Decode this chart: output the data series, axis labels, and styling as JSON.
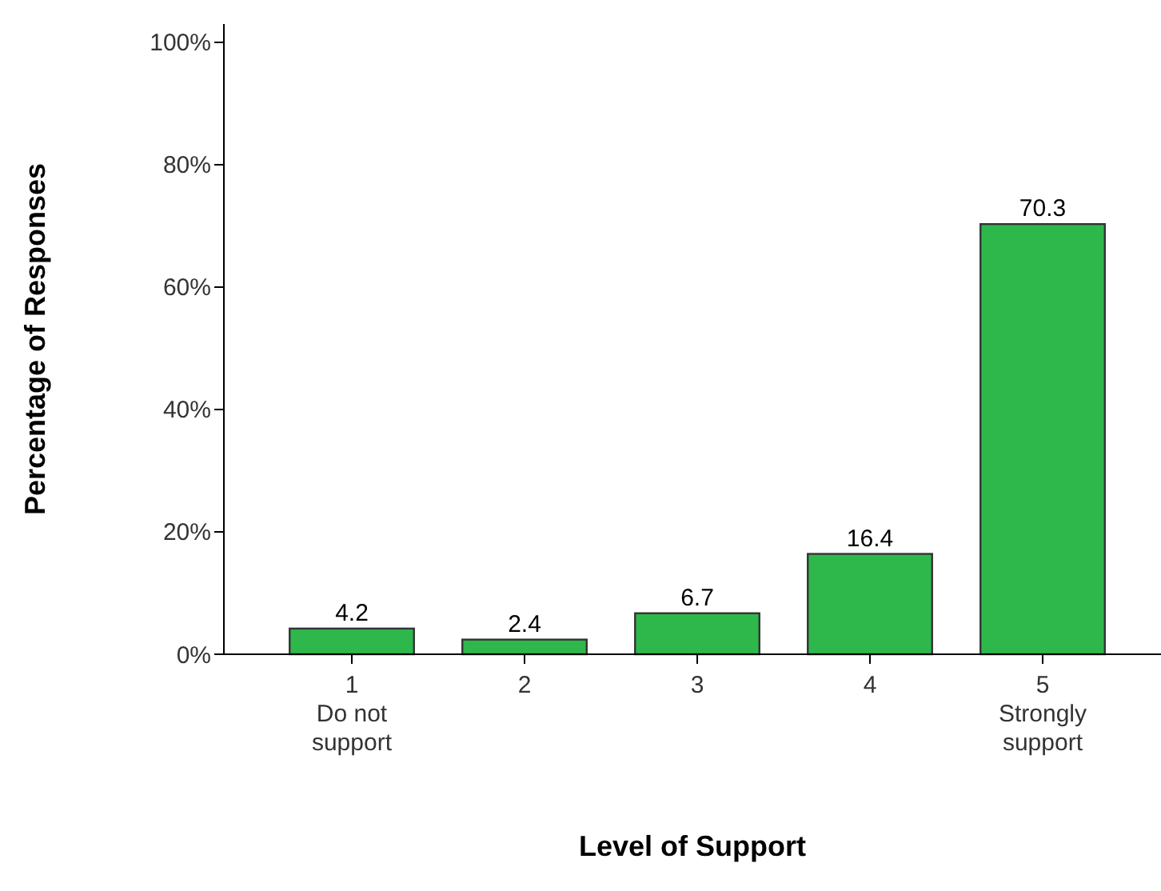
{
  "chart_data": {
    "type": "bar",
    "xlabel": "Level of Support",
    "ylabel": "Percentage of Responses",
    "categories": [
      "1\nDo not\nsupport",
      "2",
      "3",
      "4",
      "5\nStrongly\nsupport"
    ],
    "values": [
      4.2,
      2.4,
      6.7,
      16.4,
      70.3
    ],
    "color": "#2eb84b",
    "data_labels": true,
    "ylim": [
      0,
      103
    ],
    "yticks": [
      {
        "value": 0,
        "label": "0%"
      },
      {
        "value": 20,
        "label": "20%"
      },
      {
        "value": 40,
        "label": "40%"
      },
      {
        "value": 60,
        "label": "60%"
      },
      {
        "value": 80,
        "label": "80%"
      },
      {
        "value": 100,
        "label": "100%"
      }
    ],
    "grid": false
  }
}
